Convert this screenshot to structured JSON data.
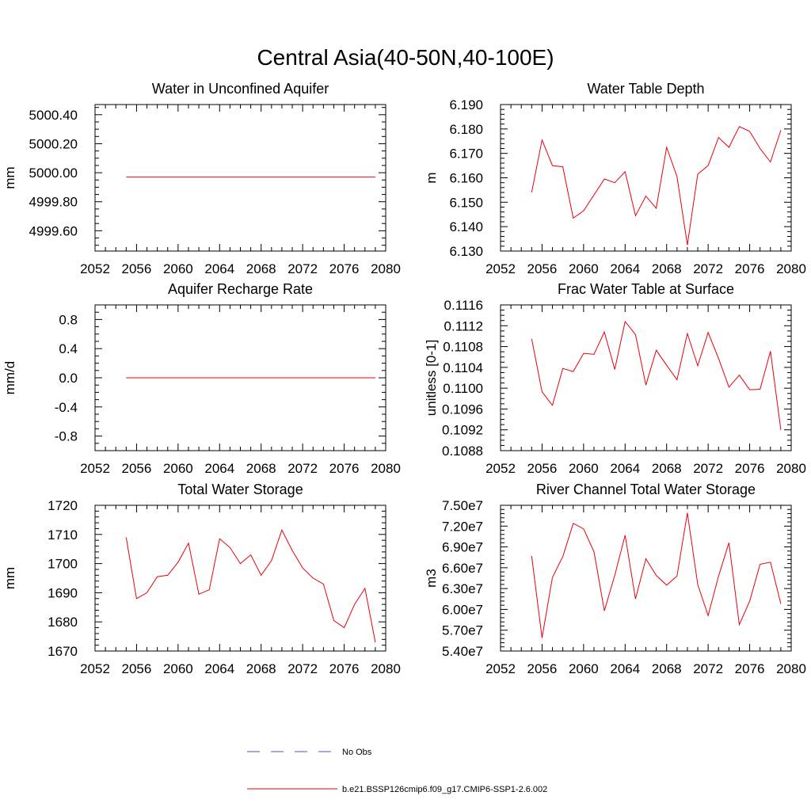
{
  "figure_title": "Central Asia(40-50N,40-100E)",
  "legend": {
    "entries": [
      {
        "label": "No Obs",
        "color": "#4f4fc8",
        "dash": "dashed"
      },
      {
        "label": "b.e21.BSSP126cmip6.f09_g17.CMIP6-SSP1-2.6.002",
        "color": "#e8000b",
        "dash": "solid"
      }
    ]
  },
  "chart_data": [
    {
      "type": "line",
      "title": "Water in Unconfined Aquifer",
      "xlabel": "",
      "ylabel": "mm",
      "xlim": [
        2052,
        2080
      ],
      "ylim": [
        4999.46,
        5000.47
      ],
      "xticks": [
        2052,
        2056,
        2060,
        2064,
        2068,
        2072,
        2076,
        2080
      ],
      "xtick_labels": [
        "2052",
        "2056",
        "2060",
        "2064",
        "2068",
        "2072",
        "2076",
        "2080"
      ],
      "yticks": [
        4999.6,
        4999.8,
        5000.0,
        5000.2,
        5000.4
      ],
      "ytick_labels": [
        "4999.60",
        "4999.80",
        "5000.00",
        "5000.20",
        "5000.40"
      ],
      "yminor": [
        4999.5,
        4999.55,
        4999.65,
        4999.7,
        4999.75,
        4999.85,
        4999.9,
        4999.95,
        5000.05,
        5000.1,
        5000.15,
        5000.25,
        5000.3,
        5000.35,
        5000.45
      ],
      "x": [
        2055,
        2079
      ],
      "series": [
        {
          "color": "#e8000b",
          "values": [
            4999.97,
            4999.97
          ]
        }
      ]
    },
    {
      "type": "line",
      "title": "Water Table Depth",
      "xlabel": "",
      "ylabel": "m",
      "xlim": [
        2052,
        2080
      ],
      "ylim": [
        6.13,
        6.19
      ],
      "xticks": [
        2052,
        2056,
        2060,
        2064,
        2068,
        2072,
        2076,
        2080
      ],
      "xtick_labels": [
        "2052",
        "2056",
        "2060",
        "2064",
        "2068",
        "2072",
        "2076",
        "2080"
      ],
      "yticks": [
        6.13,
        6.14,
        6.15,
        6.16,
        6.17,
        6.18,
        6.19
      ],
      "ytick_labels": [
        "6.130",
        "6.140",
        "6.150",
        "6.160",
        "6.170",
        "6.180",
        "6.190"
      ],
      "yminor": [
        6.132,
        6.134,
        6.136,
        6.138,
        6.142,
        6.144,
        6.146,
        6.148,
        6.152,
        6.154,
        6.156,
        6.158,
        6.162,
        6.164,
        6.166,
        6.168,
        6.172,
        6.174,
        6.176,
        6.178,
        6.182,
        6.184,
        6.186,
        6.188
      ],
      "x": [
        2055,
        2056,
        2057,
        2058,
        2059,
        2060,
        2061,
        2062,
        2063,
        2064,
        2065,
        2066,
        2067,
        2068,
        2069,
        2070,
        2071,
        2072,
        2073,
        2074,
        2075,
        2076,
        2077,
        2078,
        2079
      ],
      "series": [
        {
          "color": "#e8000b",
          "values": [
            6.154,
            6.1755,
            6.165,
            6.1645,
            6.1435,
            6.1465,
            6.153,
            6.1595,
            6.158,
            6.1625,
            6.1445,
            6.1525,
            6.1475,
            6.1725,
            6.1605,
            6.1325,
            6.1615,
            6.165,
            6.1765,
            6.1725,
            6.181,
            6.179,
            6.172,
            6.1665,
            6.1795
          ]
        }
      ]
    },
    {
      "type": "line",
      "title": "Aquifer Recharge Rate",
      "xlabel": "",
      "ylabel": "mm/d",
      "xlim": [
        2052,
        2080
      ],
      "ylim": [
        -1.0,
        1.0
      ],
      "xticks": [
        2052,
        2056,
        2060,
        2064,
        2068,
        2072,
        2076,
        2080
      ],
      "xtick_labels": [
        "2052",
        "2056",
        "2060",
        "2064",
        "2068",
        "2072",
        "2076",
        "2080"
      ],
      "yticks": [
        -0.8,
        -0.4,
        0.0,
        0.4,
        0.8
      ],
      "ytick_labels": [
        "-0.8",
        "-0.4",
        "0.0",
        "0.4",
        "0.8"
      ],
      "yminor": [
        -0.9,
        -0.7,
        -0.6,
        -0.5,
        -0.3,
        -0.2,
        -0.1,
        0.1,
        0.2,
        0.3,
        0.5,
        0.6,
        0.7,
        0.9
      ],
      "x": [
        2055,
        2079
      ],
      "series": [
        {
          "color": "#e8000b",
          "values": [
            0.0,
            0.0
          ]
        }
      ]
    },
    {
      "type": "line",
      "title": "Frac Water Table at Surface",
      "xlabel": "",
      "ylabel": "unitless [0-1]",
      "xlim": [
        2052,
        2080
      ],
      "ylim": [
        0.1088,
        0.1116
      ],
      "xticks": [
        2052,
        2056,
        2060,
        2064,
        2068,
        2072,
        2076,
        2080
      ],
      "xtick_labels": [
        "2052",
        "2056",
        "2060",
        "2064",
        "2068",
        "2072",
        "2076",
        "2080"
      ],
      "yticks": [
        0.1088,
        0.1092,
        0.1096,
        0.11,
        0.1104,
        0.1108,
        0.1112,
        0.1116
      ],
      "ytick_labels": [
        "0.1088",
        "0.1092",
        "0.1096",
        "0.1100",
        "0.1104",
        "0.1108",
        "0.1112",
        "0.1116"
      ],
      "yminor": [
        0.1089,
        0.109,
        0.1091,
        0.1093,
        0.1094,
        0.1095,
        0.1097,
        0.1098,
        0.1099,
        0.1101,
        0.1102,
        0.1103,
        0.1105,
        0.1106,
        0.1107,
        0.1109,
        0.111,
        0.1111,
        0.1113,
        0.1114,
        0.1115
      ],
      "x": [
        2055,
        2056,
        2057,
        2058,
        2059,
        2060,
        2061,
        2062,
        2063,
        2064,
        2065,
        2066,
        2067,
        2068,
        2069,
        2070,
        2071,
        2072,
        2073,
        2074,
        2075,
        2076,
        2077,
        2078,
        2079
      ],
      "series": [
        {
          "color": "#e8000b",
          "values": [
            0.11095,
            0.10993,
            0.10967,
            0.11038,
            0.11032,
            0.11067,
            0.11065,
            0.11108,
            0.11036,
            0.11128,
            0.11103,
            0.11006,
            0.11073,
            0.11044,
            0.11016,
            0.11105,
            0.11043,
            0.11107,
            0.11057,
            0.11002,
            0.11025,
            0.10997,
            0.10998,
            0.11071,
            0.1092
          ]
        }
      ]
    },
    {
      "type": "line",
      "title": "Total Water Storage",
      "xlabel": "",
      "ylabel": "mm",
      "xlim": [
        2052,
        2080
      ],
      "ylim": [
        1670,
        1720
      ],
      "xticks": [
        2052,
        2056,
        2060,
        2064,
        2068,
        2072,
        2076,
        2080
      ],
      "xtick_labels": [
        "2052",
        "2056",
        "2060",
        "2064",
        "2068",
        "2072",
        "2076",
        "2080"
      ],
      "yticks": [
        1670,
        1680,
        1690,
        1700,
        1710,
        1720
      ],
      "ytick_labels": [
        "1670",
        "1680",
        "1690",
        "1700",
        "1710",
        "1720"
      ],
      "yminor": [
        1672,
        1674,
        1676,
        1678,
        1682,
        1684,
        1686,
        1688,
        1692,
        1694,
        1696,
        1698,
        1702,
        1704,
        1706,
        1708,
        1712,
        1714,
        1716,
        1718
      ],
      "x": [
        2055,
        2056,
        2057,
        2058,
        2059,
        2060,
        2061,
        2062,
        2063,
        2064,
        2065,
        2066,
        2067,
        2068,
        2069,
        2070,
        2071,
        2072,
        2073,
        2074,
        2075,
        2076,
        2077,
        2078,
        2079
      ],
      "series": [
        {
          "color": "#e8000b",
          "values": [
            1709,
            1688,
            1690,
            1695.5,
            1696,
            1700.5,
            1707,
            1689.5,
            1691,
            1708.5,
            1705.5,
            1700,
            1703,
            1696,
            1701,
            1711.5,
            1704.5,
            1698.5,
            1695,
            1693,
            1680.5,
            1678,
            1686,
            1691.5,
            1673
          ]
        }
      ]
    },
    {
      "type": "line",
      "title": "River Channel Total Water Storage",
      "xlabel": "",
      "ylabel": "m3",
      "xlim": [
        2052,
        2080
      ],
      "ylim": [
        54000000,
        75000000
      ],
      "xticks": [
        2052,
        2056,
        2060,
        2064,
        2068,
        2072,
        2076,
        2080
      ],
      "xtick_labels": [
        "2052",
        "2056",
        "2060",
        "2064",
        "2068",
        "2072",
        "2076",
        "2080"
      ],
      "yticks": [
        54000000,
        57000000,
        60000000,
        63000000,
        66000000,
        69000000,
        72000000,
        75000000
      ],
      "ytick_labels": [
        "5.40e7",
        "5.70e7",
        "6.00e7",
        "6.30e7",
        "6.60e7",
        "6.90e7",
        "7.20e7",
        "7.50e7"
      ],
      "yminor": [
        54600000,
        55200000,
        55800000,
        56400000,
        57600000,
        58200000,
        58800000,
        59400000,
        60600000,
        61200000,
        61800000,
        62400000,
        63600000,
        64200000,
        64800000,
        65400000,
        66600000,
        67200000,
        67800000,
        68400000,
        69600000,
        70200000,
        70800000,
        71400000,
        72600000,
        73200000,
        73800000,
        74400000
      ],
      "x": [
        2055,
        2056,
        2057,
        2058,
        2059,
        2060,
        2061,
        2062,
        2063,
        2064,
        2065,
        2066,
        2067,
        2068,
        2069,
        2070,
        2071,
        2072,
        2073,
        2074,
        2075,
        2076,
        2077,
        2078,
        2079
      ],
      "series": [
        {
          "color": "#e8000b",
          "values": [
            67700000,
            55900000,
            64600000,
            67600000,
            72400000,
            71600000,
            68300000,
            59800000,
            64900000,
            70700000,
            61500000,
            67300000,
            64900000,
            63500000,
            64800000,
            73900000,
            63600000,
            59100000,
            64800000,
            69600000,
            57800000,
            61200000,
            66500000,
            66800000,
            60800000
          ]
        }
      ]
    }
  ]
}
